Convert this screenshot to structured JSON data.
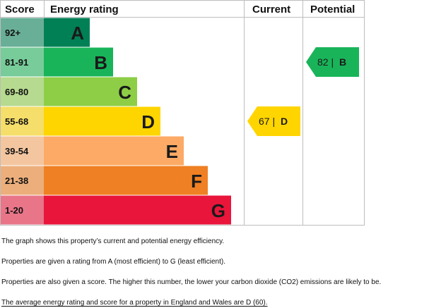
{
  "chart_data": {
    "type": "table",
    "headers": {
      "score": "Score",
      "rating": "Energy rating",
      "current": "Current",
      "potential": "Potential"
    },
    "bands": [
      {
        "score": "92+",
        "letter": "A",
        "color": "#008054"
      },
      {
        "score": "81-91",
        "letter": "B",
        "color": "#19b459"
      },
      {
        "score": "69-80",
        "letter": "C",
        "color": "#8dce46"
      },
      {
        "score": "55-68",
        "letter": "D",
        "color": "#ffd500"
      },
      {
        "score": "39-54",
        "letter": "E",
        "color": "#fcaa65"
      },
      {
        "score": "21-38",
        "letter": "F",
        "color": "#ef8023"
      },
      {
        "score": "1-20",
        "letter": "G",
        "color": "#e9153b"
      }
    ],
    "current": {
      "value": 67,
      "letter": "D",
      "label": "67 | D",
      "color": "#ffd500"
    },
    "potential": {
      "value": 82,
      "letter": "B",
      "label": "82 | B",
      "color": "#19b459"
    }
  },
  "notes": {
    "line1": "The graph shows this property’s current and potential energy efficiency.",
    "line2": "Properties are given a rating from A (most efficient) to G (least efficient).",
    "line3": "Properties are also given a score. The higher this number, the lower your carbon dioxide (CO2) emissions are likely to be.",
    "line4": "The average energy rating and score for a property in England and Wales are D (60)."
  }
}
